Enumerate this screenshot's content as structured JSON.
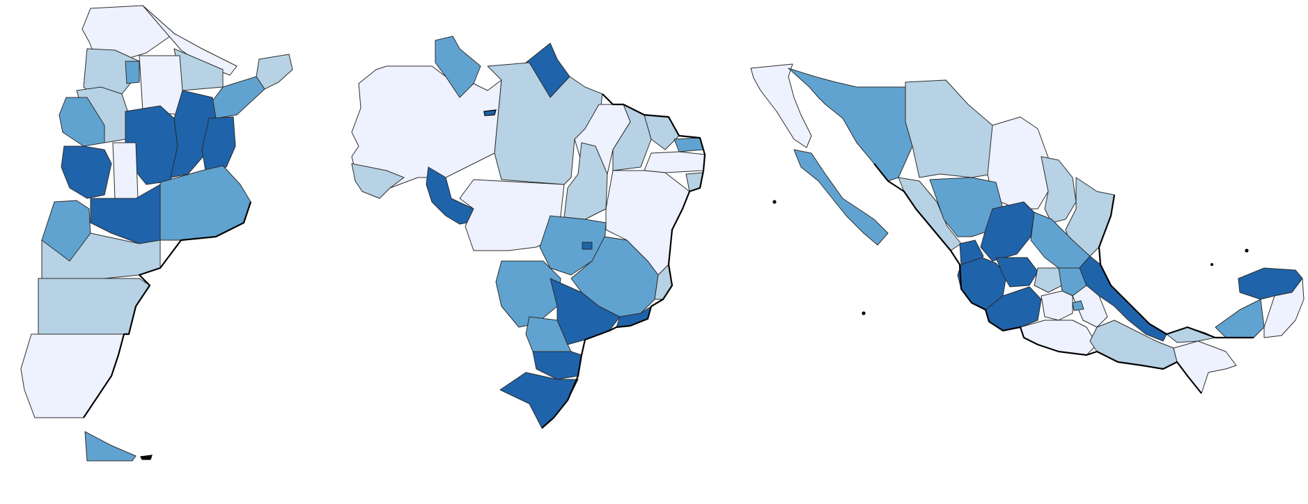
{
  "legend_colors": {
    "lowest": "#eef1fe",
    "low": "#b6d2e4",
    "mid": "#61a3d0",
    "high": "#1f63aa"
  },
  "maps": [
    {
      "name": "argentina-map"
    },
    {
      "name": "brazil-map"
    },
    {
      "name": "mexico-map"
    }
  ]
}
